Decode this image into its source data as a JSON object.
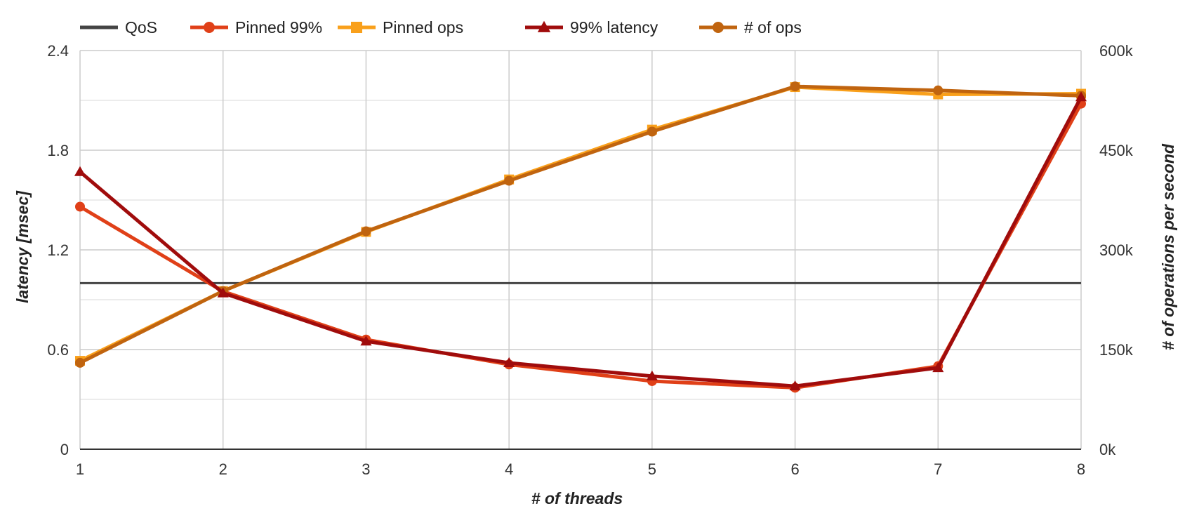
{
  "chart_data": {
    "type": "line",
    "x": [
      1,
      2,
      3,
      4,
      5,
      6,
      7,
      8
    ],
    "xlabel": "# of threads",
    "ylabel_left": "latency [msec]",
    "ylabel_right": "# of operations per second",
    "ylim_left": [
      0,
      2.4
    ],
    "ylim_right": [
      0,
      600000
    ],
    "yticks_left": [
      "0",
      "0.6",
      "1.2",
      "1.8",
      "2.4"
    ],
    "yticks_right": [
      "0k",
      "150k",
      "300k",
      "450k",
      "600k"
    ],
    "xticks": [
      "1",
      "2",
      "3",
      "4",
      "5",
      "6",
      "7",
      "8"
    ],
    "grid": true,
    "legend_position": "top",
    "series": [
      {
        "name": "QoS",
        "axis": "left",
        "color": "#444444",
        "marker": "none",
        "values": [
          1.0,
          1.0,
          1.0,
          1.0,
          1.0,
          1.0,
          1.0,
          1.0
        ]
      },
      {
        "name": "Pinned 99%",
        "axis": "left",
        "color": "#E04018",
        "marker": "circle",
        "values": [
          1.46,
          0.95,
          0.66,
          0.51,
          0.41,
          0.37,
          0.5,
          2.08
        ]
      },
      {
        "name": "Pinned ops",
        "axis": "right",
        "color": "#F9A01B",
        "marker": "square",
        "values": [
          133000,
          238000,
          327000,
          406000,
          481000,
          545000,
          534000,
          535000
        ]
      },
      {
        "name": "99% latency",
        "axis": "left",
        "color": "#A00C0C",
        "marker": "triangle",
        "values": [
          1.67,
          0.94,
          0.65,
          0.52,
          0.44,
          0.38,
          0.49,
          2.12
        ]
      },
      {
        "name": "# of ops",
        "axis": "right",
        "color": "#C0640F",
        "marker": "circle",
        "values": [
          130000,
          238000,
          328000,
          404000,
          478000,
          546000,
          540000,
          532000
        ]
      }
    ]
  }
}
